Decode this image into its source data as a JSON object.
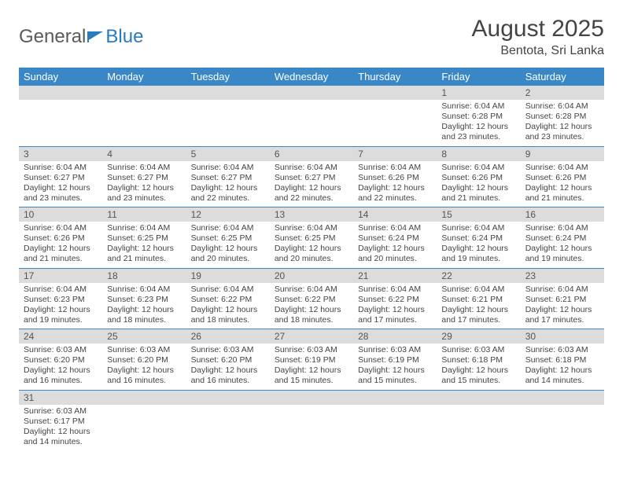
{
  "logo": {
    "part1": "General",
    "part2": "Blue"
  },
  "title": "August 2025",
  "location": "Bentota, Sri Lanka",
  "columns": [
    "Sunday",
    "Monday",
    "Tuesday",
    "Wednesday",
    "Thursday",
    "Friday",
    "Saturday"
  ],
  "colors": {
    "header_bg": "#3a87c8",
    "header_text": "#ffffff",
    "daybar_bg": "#dcdcdc",
    "row_border": "#3a87c8",
    "logo_gray": "#5a5a5a",
    "logo_blue": "#2a7ac0"
  },
  "weeks": [
    [
      {
        "n": "",
        "sr": "",
        "ss": "",
        "dl": ""
      },
      {
        "n": "",
        "sr": "",
        "ss": "",
        "dl": ""
      },
      {
        "n": "",
        "sr": "",
        "ss": "",
        "dl": ""
      },
      {
        "n": "",
        "sr": "",
        "ss": "",
        "dl": ""
      },
      {
        "n": "",
        "sr": "",
        "ss": "",
        "dl": ""
      },
      {
        "n": "1",
        "sr": "Sunrise: 6:04 AM",
        "ss": "Sunset: 6:28 PM",
        "dl": "Daylight: 12 hours and 23 minutes."
      },
      {
        "n": "2",
        "sr": "Sunrise: 6:04 AM",
        "ss": "Sunset: 6:28 PM",
        "dl": "Daylight: 12 hours and 23 minutes."
      }
    ],
    [
      {
        "n": "3",
        "sr": "Sunrise: 6:04 AM",
        "ss": "Sunset: 6:27 PM",
        "dl": "Daylight: 12 hours and 23 minutes."
      },
      {
        "n": "4",
        "sr": "Sunrise: 6:04 AM",
        "ss": "Sunset: 6:27 PM",
        "dl": "Daylight: 12 hours and 23 minutes."
      },
      {
        "n": "5",
        "sr": "Sunrise: 6:04 AM",
        "ss": "Sunset: 6:27 PM",
        "dl": "Daylight: 12 hours and 22 minutes."
      },
      {
        "n": "6",
        "sr": "Sunrise: 6:04 AM",
        "ss": "Sunset: 6:27 PM",
        "dl": "Daylight: 12 hours and 22 minutes."
      },
      {
        "n": "7",
        "sr": "Sunrise: 6:04 AM",
        "ss": "Sunset: 6:26 PM",
        "dl": "Daylight: 12 hours and 22 minutes."
      },
      {
        "n": "8",
        "sr": "Sunrise: 6:04 AM",
        "ss": "Sunset: 6:26 PM",
        "dl": "Daylight: 12 hours and 21 minutes."
      },
      {
        "n": "9",
        "sr": "Sunrise: 6:04 AM",
        "ss": "Sunset: 6:26 PM",
        "dl": "Daylight: 12 hours and 21 minutes."
      }
    ],
    [
      {
        "n": "10",
        "sr": "Sunrise: 6:04 AM",
        "ss": "Sunset: 6:26 PM",
        "dl": "Daylight: 12 hours and 21 minutes."
      },
      {
        "n": "11",
        "sr": "Sunrise: 6:04 AM",
        "ss": "Sunset: 6:25 PM",
        "dl": "Daylight: 12 hours and 21 minutes."
      },
      {
        "n": "12",
        "sr": "Sunrise: 6:04 AM",
        "ss": "Sunset: 6:25 PM",
        "dl": "Daylight: 12 hours and 20 minutes."
      },
      {
        "n": "13",
        "sr": "Sunrise: 6:04 AM",
        "ss": "Sunset: 6:25 PM",
        "dl": "Daylight: 12 hours and 20 minutes."
      },
      {
        "n": "14",
        "sr": "Sunrise: 6:04 AM",
        "ss": "Sunset: 6:24 PM",
        "dl": "Daylight: 12 hours and 20 minutes."
      },
      {
        "n": "15",
        "sr": "Sunrise: 6:04 AM",
        "ss": "Sunset: 6:24 PM",
        "dl": "Daylight: 12 hours and 19 minutes."
      },
      {
        "n": "16",
        "sr": "Sunrise: 6:04 AM",
        "ss": "Sunset: 6:24 PM",
        "dl": "Daylight: 12 hours and 19 minutes."
      }
    ],
    [
      {
        "n": "17",
        "sr": "Sunrise: 6:04 AM",
        "ss": "Sunset: 6:23 PM",
        "dl": "Daylight: 12 hours and 19 minutes."
      },
      {
        "n": "18",
        "sr": "Sunrise: 6:04 AM",
        "ss": "Sunset: 6:23 PM",
        "dl": "Daylight: 12 hours and 18 minutes."
      },
      {
        "n": "19",
        "sr": "Sunrise: 6:04 AM",
        "ss": "Sunset: 6:22 PM",
        "dl": "Daylight: 12 hours and 18 minutes."
      },
      {
        "n": "20",
        "sr": "Sunrise: 6:04 AM",
        "ss": "Sunset: 6:22 PM",
        "dl": "Daylight: 12 hours and 18 minutes."
      },
      {
        "n": "21",
        "sr": "Sunrise: 6:04 AM",
        "ss": "Sunset: 6:22 PM",
        "dl": "Daylight: 12 hours and 17 minutes."
      },
      {
        "n": "22",
        "sr": "Sunrise: 6:04 AM",
        "ss": "Sunset: 6:21 PM",
        "dl": "Daylight: 12 hours and 17 minutes."
      },
      {
        "n": "23",
        "sr": "Sunrise: 6:04 AM",
        "ss": "Sunset: 6:21 PM",
        "dl": "Daylight: 12 hours and 17 minutes."
      }
    ],
    [
      {
        "n": "24",
        "sr": "Sunrise: 6:03 AM",
        "ss": "Sunset: 6:20 PM",
        "dl": "Daylight: 12 hours and 16 minutes."
      },
      {
        "n": "25",
        "sr": "Sunrise: 6:03 AM",
        "ss": "Sunset: 6:20 PM",
        "dl": "Daylight: 12 hours and 16 minutes."
      },
      {
        "n": "26",
        "sr": "Sunrise: 6:03 AM",
        "ss": "Sunset: 6:20 PM",
        "dl": "Daylight: 12 hours and 16 minutes."
      },
      {
        "n": "27",
        "sr": "Sunrise: 6:03 AM",
        "ss": "Sunset: 6:19 PM",
        "dl": "Daylight: 12 hours and 15 minutes."
      },
      {
        "n": "28",
        "sr": "Sunrise: 6:03 AM",
        "ss": "Sunset: 6:19 PM",
        "dl": "Daylight: 12 hours and 15 minutes."
      },
      {
        "n": "29",
        "sr": "Sunrise: 6:03 AM",
        "ss": "Sunset: 6:18 PM",
        "dl": "Daylight: 12 hours and 15 minutes."
      },
      {
        "n": "30",
        "sr": "Sunrise: 6:03 AM",
        "ss": "Sunset: 6:18 PM",
        "dl": "Daylight: 12 hours and 14 minutes."
      }
    ],
    [
      {
        "n": "31",
        "sr": "Sunrise: 6:03 AM",
        "ss": "Sunset: 6:17 PM",
        "dl": "Daylight: 12 hours and 14 minutes."
      },
      {
        "n": "",
        "sr": "",
        "ss": "",
        "dl": ""
      },
      {
        "n": "",
        "sr": "",
        "ss": "",
        "dl": ""
      },
      {
        "n": "",
        "sr": "",
        "ss": "",
        "dl": ""
      },
      {
        "n": "",
        "sr": "",
        "ss": "",
        "dl": ""
      },
      {
        "n": "",
        "sr": "",
        "ss": "",
        "dl": ""
      },
      {
        "n": "",
        "sr": "",
        "ss": "",
        "dl": ""
      }
    ]
  ]
}
